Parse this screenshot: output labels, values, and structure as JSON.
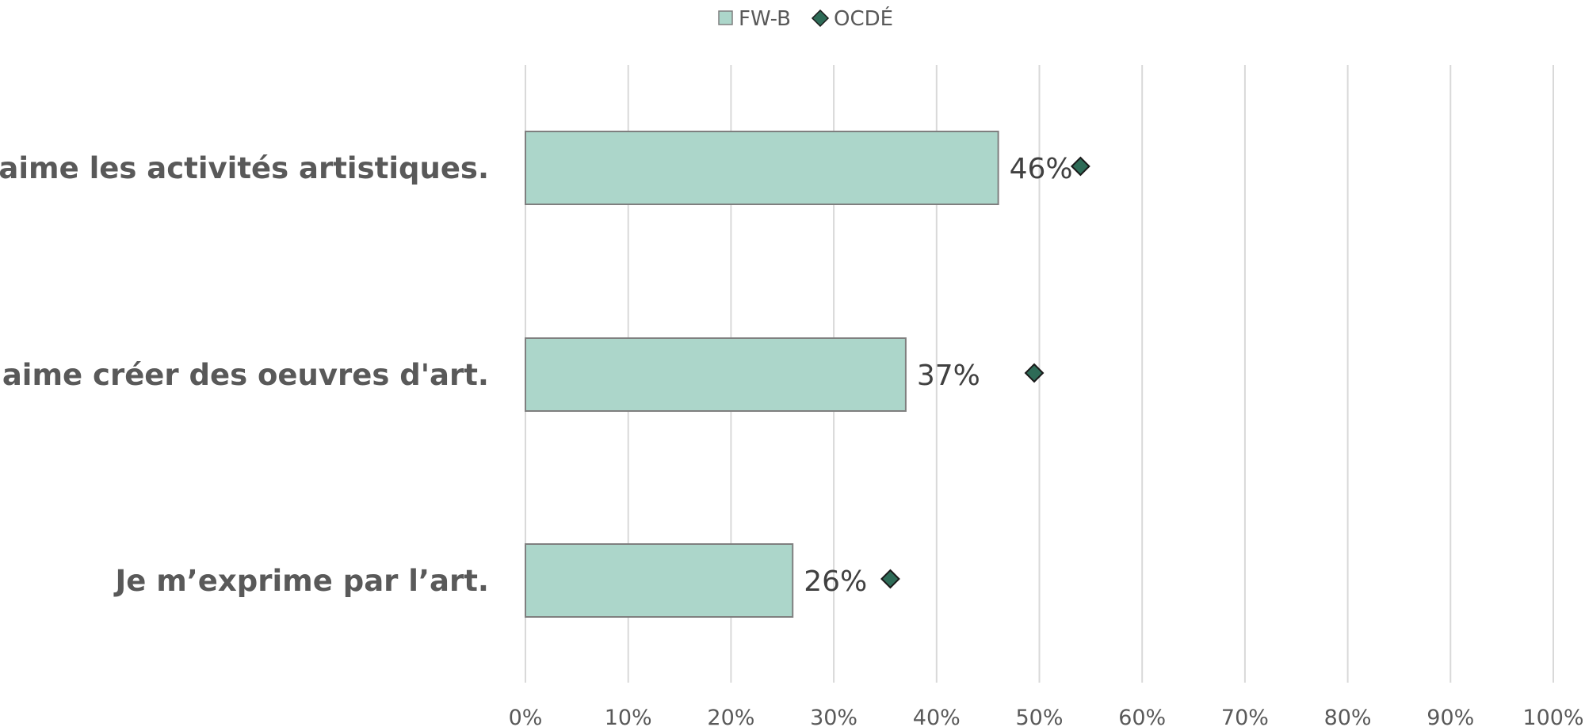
{
  "chart_data": {
    "type": "bar",
    "orientation": "horizontal",
    "categories": [
      "J’aime les activités artistiques.",
      "J’aime créer des oeuvres d'art.",
      "Je m’exprime par l’art."
    ],
    "series": [
      {
        "name": "FW-B",
        "kind": "bar",
        "values": [
          46,
          37,
          26
        ],
        "color": "#acd6ca",
        "labels": [
          "46%",
          "37%",
          "26%"
        ]
      },
      {
        "name": "OCDÉ",
        "kind": "marker",
        "marker": "diamond",
        "values": [
          54,
          49.5,
          35.5
        ],
        "color": "#2e6b57"
      }
    ],
    "xlim": [
      0,
      100
    ],
    "x_ticks": [
      "0%",
      "10%",
      "20%",
      "30%",
      "40%",
      "50%",
      "60%",
      "70%",
      "80%",
      "90%",
      "100%"
    ],
    "grid": true,
    "legend_position": "top"
  }
}
